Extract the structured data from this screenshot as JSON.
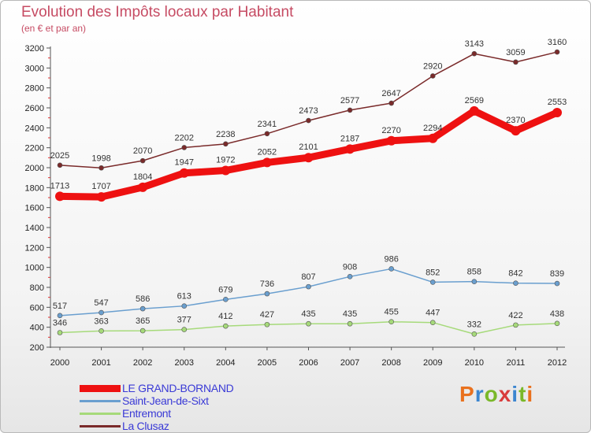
{
  "title": "Evolution des Impôts locaux par Habitant",
  "subtitle": "(en € et par an)",
  "brand": {
    "text": "Proxiti",
    "colors": [
      "#e9711e",
      "#3c86d0",
      "#7ab829",
      "#d93c3c",
      "#3c86d0",
      "#7ab829",
      "#e9711e"
    ]
  },
  "chart_data": {
    "type": "line",
    "x": [
      "2000",
      "2001",
      "2002",
      "2003",
      "2004",
      "2005",
      "2006",
      "2007",
      "2008",
      "2009",
      "2010",
      "2011",
      "2012"
    ],
    "ylim": [
      200,
      3200
    ],
    "yticks": [
      200,
      400,
      600,
      800,
      1000,
      1200,
      1400,
      1600,
      1800,
      2000,
      2200,
      2400,
      2600,
      2800,
      3000,
      3200
    ],
    "grid": false,
    "legend_position": "bottom-left",
    "series": [
      {
        "name": "LE GRAND-BORNAND",
        "color": "#ee1111",
        "values": [
          1713,
          1707,
          1804,
          1947,
          1972,
          2052,
          2101,
          2187,
          2270,
          2294,
          2569,
          2370,
          2553
        ]
      },
      {
        "name": "Saint-Jean-de-Sixt",
        "color": "#6a9fcf",
        "values": [
          517,
          547,
          586,
          613,
          679,
          736,
          807,
          908,
          986,
          852,
          858,
          842,
          839
        ]
      },
      {
        "name": "Entremont",
        "color": "#a6da7a",
        "values": [
          346,
          363,
          365,
          377,
          412,
          427,
          435,
          435,
          455,
          447,
          332,
          422,
          438
        ]
      },
      {
        "name": "La Clusaz",
        "color": "#7a2a2a",
        "values": [
          2025,
          1998,
          2070,
          2202,
          2238,
          2341,
          2473,
          2577,
          2647,
          2920,
          3143,
          3059,
          3160
        ]
      }
    ]
  }
}
